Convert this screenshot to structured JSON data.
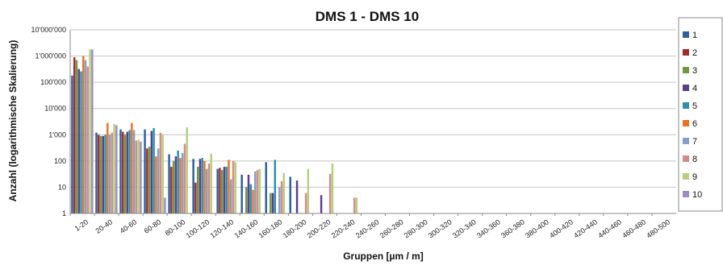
{
  "chart_data": {
    "type": "bar",
    "title": "DMS 1  -  DMS 10",
    "xlabel": "Gruppen  [µm / m]",
    "ylabel": "Anzahl  (logarithmische Skalierung)",
    "yscale": "log",
    "ylim": [
      1,
      10000000
    ],
    "yticks": [
      {
        "v": 1,
        "label": "1"
      },
      {
        "v": 10,
        "label": "10"
      },
      {
        "v": 100,
        "label": "100"
      },
      {
        "v": 1000,
        "label": "1'000"
      },
      {
        "v": 10000,
        "label": "10'000"
      },
      {
        "v": 100000,
        "label": "100'000"
      },
      {
        "v": 1000000,
        "label": "1'000'000"
      },
      {
        "v": 10000000,
        "label": "10'000'000"
      }
    ],
    "grid": true,
    "legend_position": "right",
    "categories": [
      "1-20",
      "20-40",
      "40-60",
      "60-80",
      "80-100",
      "100-120",
      "120-140",
      "140-160",
      "160-180",
      "180-200",
      "200-220",
      "220-240",
      "240-260",
      "260-280",
      "280-300",
      "300-320",
      "320-340",
      "340-360",
      "360-380",
      "380-400",
      "400-420",
      "420-440",
      "440-460",
      "460-480",
      "480-500"
    ],
    "series": [
      {
        "name": "1",
        "color": "#2e5f9e",
        "values": [
          180000,
          1200,
          1600,
          1600,
          180,
          120,
          50,
          30,
          90,
          25,
          0,
          0,
          0,
          0,
          0,
          0,
          0,
          0,
          0,
          0,
          0,
          0,
          0,
          0,
          0
        ]
      },
      {
        "name": "2",
        "color": "#a52a2a",
        "values": [
          900000,
          1000,
          1300,
          300,
          60,
          15,
          55,
          0,
          0,
          0,
          0,
          0,
          0,
          0,
          0,
          0,
          0,
          0,
          0,
          0,
          0,
          0,
          0,
          0,
          0
        ]
      },
      {
        "name": "3",
        "color": "#6f9a3a",
        "values": [
          700000,
          900,
          1000,
          350,
          100,
          60,
          45,
          10,
          6,
          0,
          0,
          0,
          0,
          0,
          0,
          0,
          0,
          0,
          0,
          0,
          0,
          0,
          0,
          0,
          0
        ]
      },
      {
        "name": "4",
        "color": "#5a3f8c",
        "values": [
          320000,
          900,
          1300,
          1400,
          150,
          120,
          60,
          30,
          6,
          18,
          5,
          0,
          0,
          0,
          0,
          0,
          0,
          0,
          0,
          0,
          0,
          0,
          0,
          0,
          0
        ]
      },
      {
        "name": "5",
        "color": "#2a8fb0",
        "values": [
          260000,
          1000,
          1500,
          1800,
          250,
          130,
          60,
          13,
          110,
          0,
          0,
          0,
          0,
          0,
          0,
          0,
          0,
          0,
          0,
          0,
          0,
          0,
          0,
          0,
          0
        ]
      },
      {
        "name": "6",
        "color": "#e9731f",
        "values": [
          1000000,
          2800,
          2800,
          150,
          130,
          100,
          110,
          8,
          0,
          0,
          0,
          0,
          0,
          0,
          0,
          0,
          0,
          0,
          0,
          0,
          0,
          0,
          0,
          0,
          0
        ]
      },
      {
        "name": "7",
        "color": "#7f9fcf",
        "values": [
          700000,
          1000,
          1500,
          300,
          200,
          50,
          20,
          40,
          10,
          0,
          0,
          0,
          0,
          0,
          0,
          0,
          0,
          0,
          0,
          0,
          0,
          0,
          0,
          0,
          0
        ]
      },
      {
        "name": "8",
        "color": "#d98a88",
        "values": [
          400000,
          1200,
          600,
          1200,
          450,
          80,
          100,
          45,
          17,
          6,
          32,
          4,
          0,
          0,
          0,
          0,
          0,
          0,
          0,
          0,
          0,
          0,
          0,
          0,
          0
        ]
      },
      {
        "name": "9",
        "color": "#b3d07c",
        "values": [
          1800000,
          2600,
          650,
          1000,
          1900,
          190,
          90,
          50,
          35,
          50,
          80,
          4,
          0,
          0,
          0,
          0,
          0,
          0,
          0,
          0,
          0,
          0,
          0,
          0,
          0
        ]
      },
      {
        "name": "10",
        "color": "#9c8cc4",
        "values": [
          1800000,
          2300,
          550,
          4,
          0,
          0,
          0,
          0,
          0,
          0,
          0,
          0,
          0,
          0,
          0,
          0,
          0,
          0,
          0,
          0,
          0,
          0,
          0,
          0,
          0
        ]
      }
    ]
  }
}
